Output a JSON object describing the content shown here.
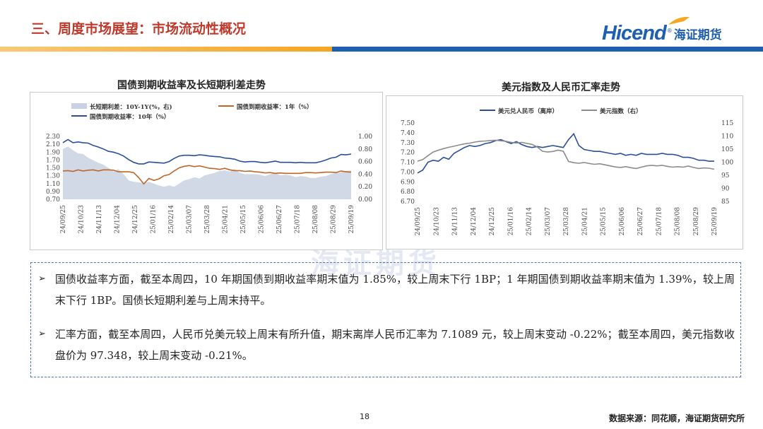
{
  "header": {
    "title": "三、周度市场展望：市场流动性概况",
    "logo_en": "Hicend",
    "logo_reg": "®",
    "logo_cn": "海证期货"
  },
  "colors": {
    "title_red": "#c0392b",
    "bar_orange": "#f5a623",
    "bar_blue": "#1f5fb0",
    "series_blue": "#2a4f9a",
    "series_orange": "#c0662a",
    "area_grey": "#c9d2e2",
    "series_grey": "#8c8c8c"
  },
  "watermark": "海证期货",
  "chart_data": [
    {
      "type": "line",
      "title": "国债到期收益率及长短期利差走势",
      "legend": [
        "长短期利差：10Y-1Y(%，右)",
        "国债到期收益率：1年（%）",
        "国债到期收益率：10年（%）"
      ],
      "x_ticks": [
        "24/09/25",
        "24/10/23",
        "24/11/13",
        "24/12/04",
        "24/12/25",
        "25/01/16",
        "25/02/14",
        "25/03/07",
        "25/03/28",
        "25/04/21",
        "25/05/15",
        "25/06/06",
        "25/06/27",
        "25/07/18",
        "25/08/08",
        "25/08/29",
        "25/09/19"
      ],
      "y_left_ticks": [
        "2.30",
        "2.10",
        "1.90",
        "1.70",
        "1.50",
        "1.30",
        "1.10",
        "0.90",
        "0.70"
      ],
      "y_right_ticks": [
        "1.00",
        "0.80",
        "0.60",
        "0.40",
        "0.20",
        "0.00"
      ],
      "ylim_left": [
        0.7,
        2.3
      ],
      "ylim_right": [
        0.0,
        1.0
      ],
      "series": [
        {
          "name": "长短期利差：10Y-1Y(%，右)",
          "kind": "area",
          "axis": "right",
          "values": [
            0.8,
            0.84,
            0.78,
            0.73,
            0.72,
            0.66,
            0.62,
            0.58,
            0.55,
            0.5,
            0.44,
            0.48,
            0.4,
            0.3,
            0.28,
            0.27,
            0.26,
            0.28,
            0.25,
            0.22,
            0.2,
            0.22,
            0.2,
            0.25,
            0.3,
            0.32,
            0.35,
            0.33,
            0.38,
            0.4,
            0.42,
            0.45,
            0.46,
            0.44,
            0.48,
            0.42,
            0.4,
            0.4,
            0.4,
            0.39,
            0.37,
            0.4,
            0.42,
            0.38,
            0.39,
            0.38,
            0.35,
            0.37,
            0.36,
            0.34,
            0.34,
            0.36,
            0.37,
            0.4,
            0.42,
            0.43,
            0.45,
            0.46
          ]
        },
        {
          "name": "国债到期收益率：1年（%）",
          "kind": "line",
          "axis": "left",
          "values": [
            1.42,
            1.43,
            1.41,
            1.45,
            1.42,
            1.44,
            1.45,
            1.42,
            1.45,
            1.45,
            1.44,
            1.4,
            1.4,
            1.4,
            1.38,
            1.25,
            1.09,
            1.23,
            1.18,
            1.22,
            1.3,
            1.33,
            1.42,
            1.5,
            1.54,
            1.56,
            1.53,
            1.55,
            1.52,
            1.49,
            1.48,
            1.46,
            1.49,
            1.45,
            1.43,
            1.43,
            1.41,
            1.42,
            1.4,
            1.39,
            1.37,
            1.38,
            1.36,
            1.37,
            1.36,
            1.36,
            1.36,
            1.36,
            1.38,
            1.38,
            1.37,
            1.38,
            1.39,
            1.39,
            1.38,
            1.42,
            1.4,
            1.39
          ]
        },
        {
          "name": "国债到期收益率：10年（%）",
          "kind": "line",
          "axis": "left",
          "values": [
            2.14,
            2.22,
            2.14,
            2.16,
            2.14,
            2.13,
            2.07,
            2.03,
            1.98,
            1.92,
            1.9,
            1.86,
            1.8,
            1.71,
            1.64,
            1.6,
            1.6,
            1.65,
            1.64,
            1.63,
            1.62,
            1.66,
            1.74,
            1.8,
            1.82,
            1.82,
            1.81,
            1.83,
            1.82,
            1.8,
            1.79,
            1.78,
            1.75,
            1.74,
            1.72,
            1.67,
            1.65,
            1.66,
            1.66,
            1.64,
            1.63,
            1.65,
            1.67,
            1.64,
            1.64,
            1.64,
            1.63,
            1.64,
            1.63,
            1.63,
            1.63,
            1.66,
            1.7,
            1.75,
            1.77,
            1.84,
            1.83,
            1.85
          ]
        }
      ]
    },
    {
      "type": "line",
      "title": "美元指数及人民币汇率走势",
      "legend": [
        "美元兑人民币（离岸）",
        "美元指数（右）"
      ],
      "x_ticks": [
        "24/09/25",
        "24/10/23",
        "24/11/13",
        "24/12/04",
        "24/12/25",
        "25/01/16",
        "25/02/14",
        "25/03/07",
        "25/03/28",
        "25/04/21",
        "25/05/15",
        "25/06/06",
        "25/06/27",
        "25/07/18",
        "25/08/08",
        "25/08/29",
        "25/09/19"
      ],
      "y_left_ticks": [
        "7.50",
        "7.40",
        "7.30",
        "7.20",
        "7.10",
        "7.00",
        "6.90",
        "6.80",
        "6.70"
      ],
      "y_right_ticks": [
        "115",
        "110",
        "105",
        "100",
        "95",
        "90",
        "85"
      ],
      "ylim_left": [
        6.7,
        7.5
      ],
      "ylim_right": [
        85,
        115
      ],
      "series": [
        {
          "name": "美元兑人民币（离岸）",
          "kind": "line",
          "axis": "left",
          "values": [
            6.99,
            7.02,
            7.1,
            7.12,
            7.11,
            7.15,
            7.13,
            7.19,
            7.22,
            7.25,
            7.27,
            7.26,
            7.27,
            7.29,
            7.3,
            7.32,
            7.33,
            7.31,
            7.29,
            7.31,
            7.28,
            7.26,
            7.25,
            7.26,
            7.25,
            7.26,
            7.27,
            7.26,
            7.25,
            7.33,
            7.39,
            7.27,
            7.23,
            7.22,
            7.21,
            7.21,
            7.2,
            7.19,
            7.18,
            7.19,
            7.17,
            7.18,
            7.17,
            7.19,
            7.18,
            7.18,
            7.18,
            7.19,
            7.18,
            7.18,
            7.17,
            7.15,
            7.15,
            7.14,
            7.12,
            7.12,
            7.11,
            7.11
          ]
        },
        {
          "name": "美元指数（右）",
          "kind": "line",
          "axis": "right",
          "values": [
            100.4,
            101.0,
            102.5,
            103.9,
            104.6,
            105.2,
            105.7,
            106.1,
            106.6,
            107.0,
            107.3,
            107.7,
            108.0,
            108.1,
            108.3,
            108.4,
            108.2,
            108.0,
            107.6,
            107.3,
            107.6,
            107.2,
            106.8,
            105.8,
            104.2,
            103.9,
            104.1,
            104.6,
            104.2,
            100.3,
            99.8,
            99.6,
            99.9,
            99.5,
            99.2,
            99.4,
            99.0,
            98.6,
            98.2,
            98.0,
            98.3,
            97.9,
            97.6,
            98.1,
            98.6,
            98.8,
            98.6,
            98.8,
            98.4,
            98.1,
            98.3,
            98.1,
            98.5,
            98.0,
            97.6,
            97.8,
            97.7,
            97.3
          ]
        }
      ]
    }
  ],
  "notes": [
    {
      "arrow": "➢",
      "text": "国债收益率方面，截至本周四，10 年期国债到期收益率期末值为 1.85%，较上周末下行 1BP；1 年期国债到期收益率期末值为 1.39%，较上周末下行 1BP。国债长短期利差与上周末持平。"
    },
    {
      "arrow": "➢",
      "text": "汇率方面，截至本周四，人民币兑美元较上周末有所升值，期末离岸人民币汇率为 7.1089 元，较上周末变动 -0.22%；截至本周四，美元指数收盘价为 97.348，较上周末变动 -0.21%。"
    }
  ],
  "footer": {
    "page_number": "18",
    "source": "数据来源：同花顺，海证期货研究所"
  }
}
